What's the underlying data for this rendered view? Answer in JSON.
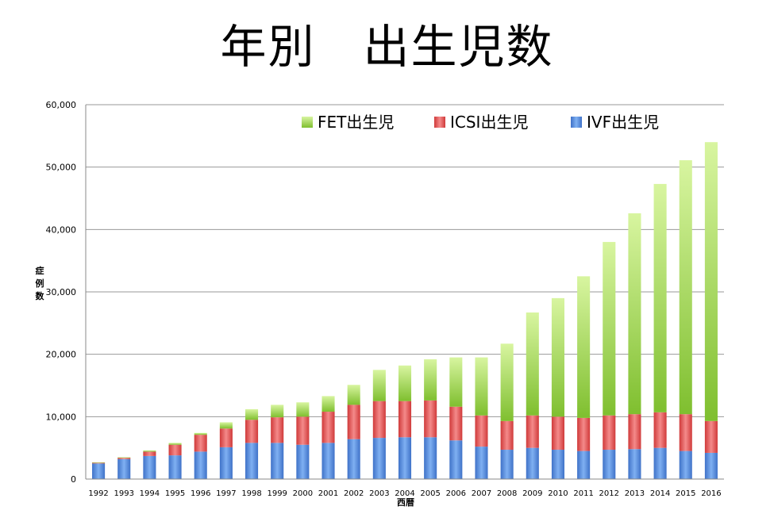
{
  "title": "年別　出生児数",
  "chart_data": {
    "type": "bar",
    "stacked": true,
    "xlabel": "西暦",
    "ylabel": "症例数",
    "ylim": [
      0,
      60000
    ],
    "yticks": [
      "0",
      "10,000",
      "20,000",
      "30,000",
      "40,000",
      "50,000",
      "60,000"
    ],
    "ytick_values": [
      0,
      10000,
      20000,
      30000,
      40000,
      50000,
      60000
    ],
    "grid": true,
    "legend_position": "top-right",
    "categories": [
      "1992",
      "1993",
      "1994",
      "1995",
      "1996",
      "1997",
      "1998",
      "1999",
      "2000",
      "2001",
      "2002",
      "2003",
      "2004",
      "2005",
      "2006",
      "2007",
      "2008",
      "2009",
      "2010",
      "2011",
      "2012",
      "2013",
      "2014",
      "2015",
      "2016"
    ],
    "series": [
      {
        "name": "IVF出生児",
        "color": "#4f86df",
        "values": [
          2500,
          3200,
          3700,
          3800,
          4400,
          5100,
          5800,
          5800,
          5500,
          5800,
          6400,
          6600,
          6700,
          6700,
          6200,
          5200,
          4700,
          5000,
          4700,
          4500,
          4700,
          4800,
          5000,
          4500,
          4200
        ]
      },
      {
        "name": "ICSI出生児",
        "color": "#e05050",
        "values": [
          100,
          200,
          700,
          1700,
          2700,
          3000,
          3700,
          4100,
          4500,
          5000,
          5500,
          5900,
          5800,
          5900,
          5400,
          5000,
          4600,
          5200,
          5300,
          5300,
          5500,
          5600,
          5700,
          5900,
          5100
        ]
      },
      {
        "name": "FET出生児",
        "color": "#8cc63f",
        "values": [
          100,
          100,
          200,
          300,
          300,
          1000,
          1700,
          2000,
          2300,
          2500,
          3200,
          5000,
          5700,
          6600,
          7900,
          9300,
          12400,
          16500,
          19000,
          22700,
          27800,
          32200,
          36600,
          40700,
          44700
        ]
      }
    ]
  }
}
